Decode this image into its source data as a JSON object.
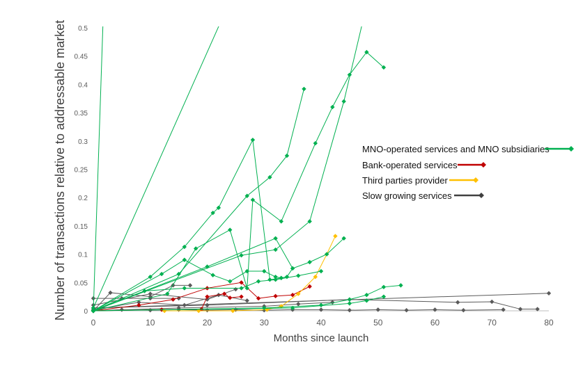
{
  "chart_data": {
    "type": "line",
    "title": "",
    "xlabel": "Months since launch",
    "ylabel": "Number of transactions relative to addressable market",
    "xlim": [
      0,
      80
    ],
    "ylim": [
      0,
      0.5
    ],
    "xticks": [
      0,
      10,
      20,
      30,
      40,
      50,
      60,
      70,
      80
    ],
    "yticks": [
      "0",
      "0.05",
      "0.1",
      "0.15",
      "0.2",
      "0.25",
      "0.3",
      "0.35",
      "0.4",
      "0.45",
      "0.5"
    ],
    "grid": false,
    "legend_position": "right",
    "groups": [
      {
        "name": "MNO-operated services and MNO subsidiaries",
        "color": "#00b050"
      },
      {
        "name": "Bank-operated services",
        "color": "#c00000"
      },
      {
        "name": "Third parties provider",
        "color": "#ffc000"
      },
      {
        "name": "Slow growing services",
        "color": "#404040"
      }
    ],
    "series": [
      {
        "group": 0,
        "points": [
          [
            0,
            0
          ],
          [
            2,
            0.6
          ]
        ]
      },
      {
        "group": 0,
        "points": [
          [
            0,
            0.005
          ],
          [
            25,
            0.57
          ]
        ]
      },
      {
        "group": 0,
        "points": [
          [
            0,
            0
          ],
          [
            10,
            0.06
          ],
          [
            16,
            0.113
          ],
          [
            21,
            0.173
          ],
          [
            22,
            0.182
          ],
          [
            28,
            0.302
          ],
          [
            31,
            0.055
          ],
          [
            33,
            0.058
          ],
          [
            34,
            0.06
          ],
          [
            35,
            0.075
          ]
        ]
      },
      {
        "group": 0,
        "points": [
          [
            0,
            0
          ],
          [
            13,
            0.03
          ],
          [
            18,
            0.11
          ],
          [
            24,
            0.143
          ],
          [
            27,
            0.04
          ],
          [
            28,
            0.196
          ],
          [
            33,
            0.158
          ],
          [
            39,
            0.296
          ],
          [
            42,
            0.36
          ],
          [
            45,
            0.417
          ],
          [
            48,
            0.457
          ],
          [
            51,
            0.43
          ]
        ]
      },
      {
        "group": 0,
        "points": [
          [
            0,
            0
          ],
          [
            15,
            0.065
          ],
          [
            27,
            0.203
          ],
          [
            31,
            0.236
          ],
          [
            34,
            0.274
          ],
          [
            37,
            0.392
          ]
        ]
      },
      {
        "group": 0,
        "points": [
          [
            0,
            0
          ],
          [
            20,
            0.078
          ],
          [
            32,
            0.128
          ],
          [
            35,
            0.075
          ],
          [
            38,
            0.086
          ],
          [
            41,
            0.1
          ],
          [
            44,
            0.128
          ]
        ]
      },
      {
        "group": 0,
        "points": [
          [
            0,
            0
          ],
          [
            26,
            0.098
          ],
          [
            32,
            0.108
          ],
          [
            38,
            0.158
          ],
          [
            44,
            0.37
          ],
          [
            48,
            0.54
          ]
        ]
      },
      {
        "group": 0,
        "points": [
          [
            0,
            0
          ],
          [
            12,
            0.065
          ],
          [
            16,
            0.09
          ],
          [
            21,
            0.063
          ],
          [
            24,
            0.052
          ],
          [
            27,
            0.07
          ],
          [
            30,
            0.07
          ],
          [
            32,
            0.06
          ],
          [
            33,
            0.058
          ]
        ]
      },
      {
        "group": 0,
        "points": [
          [
            0,
            0
          ],
          [
            9,
            0.035
          ],
          [
            16,
            0.04
          ],
          [
            26,
            0.04
          ],
          [
            29,
            0.052
          ],
          [
            32,
            0.055
          ],
          [
            36,
            0.062
          ],
          [
            40,
            0.07
          ]
        ]
      },
      {
        "group": 0,
        "points": [
          [
            0,
            0
          ],
          [
            30,
            0.005
          ],
          [
            40,
            0.01
          ],
          [
            45,
            0.02
          ],
          [
            48,
            0.028
          ],
          [
            51,
            0.042
          ],
          [
            54,
            0.045
          ]
        ]
      },
      {
        "group": 0,
        "points": [
          [
            0,
            0
          ],
          [
            35,
            0.005
          ],
          [
            45,
            0.013
          ],
          [
            48,
            0.018
          ],
          [
            51,
            0.025
          ]
        ]
      },
      {
        "group": 1,
        "points": [
          [
            0,
            0
          ],
          [
            8,
            0.01
          ],
          [
            14,
            0.02
          ],
          [
            20,
            0.04
          ],
          [
            26,
            0.05
          ],
          [
            29,
            0.022
          ],
          [
            32,
            0.026
          ],
          [
            35,
            0.028
          ],
          [
            38,
            0.043
          ]
        ]
      },
      {
        "group": 1,
        "points": [
          [
            0,
            0
          ],
          [
            12,
            0.002
          ],
          [
            19,
            0.003
          ],
          [
            20,
            0.025
          ],
          [
            23,
            0.03
          ],
          [
            24,
            0.023
          ],
          [
            26,
            0.025
          ]
        ]
      },
      {
        "group": 2,
        "points": [
          [
            12.5,
            0
          ],
          [
            18.5,
            0
          ],
          [
            24.5,
            0
          ],
          [
            30.5,
            0.002
          ],
          [
            33,
            0.008
          ],
          [
            36,
            0.03
          ],
          [
            39,
            0.06
          ],
          [
            41,
            0.1
          ],
          [
            42.5,
            0.132
          ]
        ]
      },
      {
        "group": 3,
        "points": [
          [
            0,
            0.022
          ],
          [
            5,
            0.022
          ],
          [
            10,
            0.022
          ],
          [
            15,
            0.022
          ]
        ]
      },
      {
        "group": 3,
        "points": [
          [
            0,
            0.005
          ],
          [
            80,
            0.031
          ]
        ]
      },
      {
        "group": 3,
        "points": [
          [
            0,
            0
          ],
          [
            3,
            0.032
          ],
          [
            10,
            0.025
          ],
          [
            14,
            0.045
          ],
          [
            17,
            0.045
          ]
        ]
      },
      {
        "group": 3,
        "points": [
          [
            0,
            0.005
          ],
          [
            20,
            0.01
          ],
          [
            45,
            0.02
          ],
          [
            64,
            0.015
          ],
          [
            70,
            0.016
          ],
          [
            75,
            0.003
          ],
          [
            78,
            0.003
          ]
        ]
      },
      {
        "group": 3,
        "points": [
          [
            0,
            0
          ],
          [
            5,
            0.002
          ],
          [
            10,
            0.001
          ],
          [
            15,
            0.002
          ],
          [
            20,
            0.001
          ],
          [
            25,
            0.002
          ],
          [
            30,
            0.001
          ],
          [
            35,
            0.002
          ],
          [
            40,
            0.002
          ],
          [
            45,
            0.001
          ],
          [
            50,
            0.002
          ],
          [
            55,
            0.001
          ],
          [
            60,
            0.002
          ],
          [
            65,
            0.001
          ],
          [
            72,
            0.002
          ]
        ]
      },
      {
        "group": 3,
        "points": [
          [
            0,
            0.01
          ],
          [
            10,
            0.03
          ],
          [
            20,
            0.02
          ],
          [
            25,
            0.038
          ]
        ]
      },
      {
        "group": 3,
        "points": [
          [
            0,
            0
          ],
          [
            15,
            0.005
          ],
          [
            30,
            0.008
          ],
          [
            36,
            0.012
          ],
          [
            42,
            0.015
          ]
        ]
      },
      {
        "group": 3,
        "points": [
          [
            0,
            0.002
          ],
          [
            8,
            0.015
          ],
          [
            16,
            0.01
          ],
          [
            22,
            0.028
          ],
          [
            27,
            0.018
          ]
        ]
      }
    ]
  }
}
